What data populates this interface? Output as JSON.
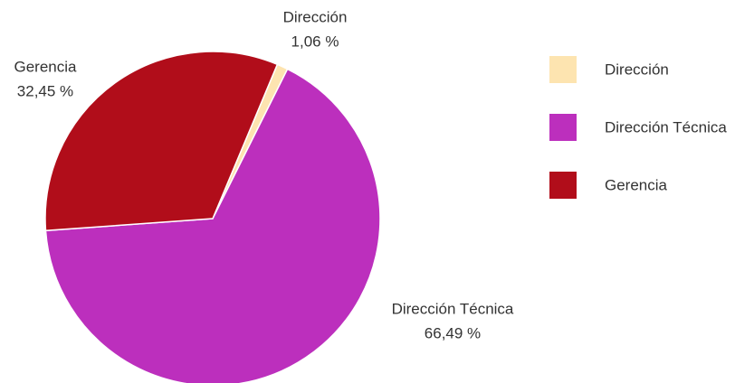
{
  "chart_data": {
    "type": "pie",
    "categories": [
      "Dirección",
      "Dirección Técnica",
      "Gerencia"
    ],
    "values": [
      1.06,
      66.49,
      32.45
    ],
    "value_labels": [
      "1,06 %",
      "66,49 %",
      "32,45 %"
    ],
    "colors": [
      "#fde4b0",
      "#bc2fbd",
      "#b10d1a"
    ],
    "legend": "right"
  }
}
